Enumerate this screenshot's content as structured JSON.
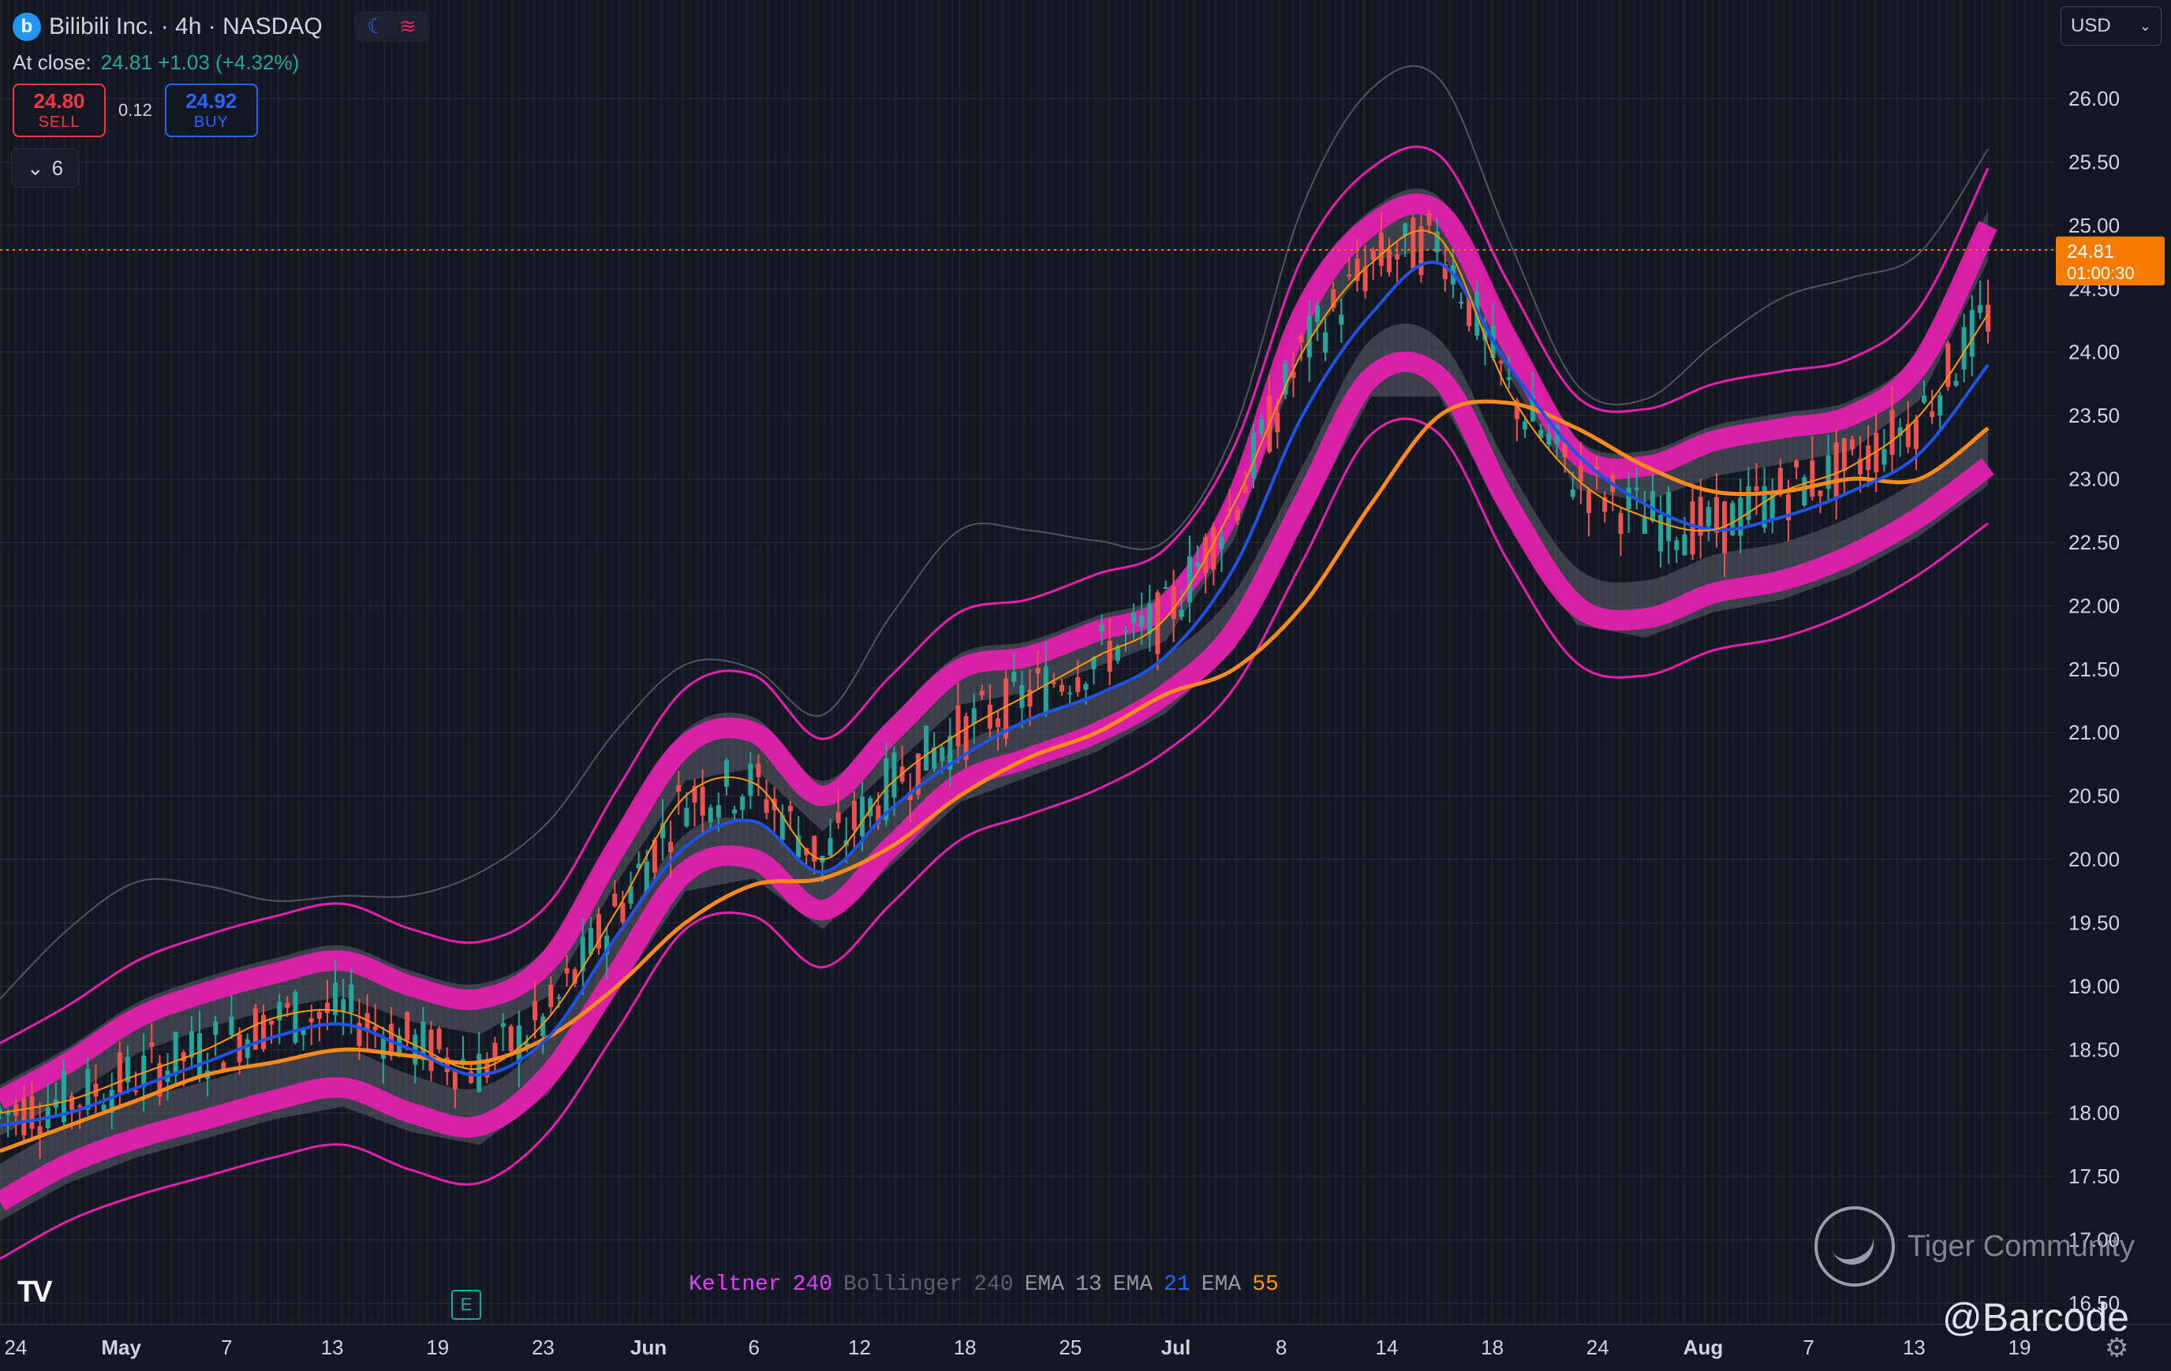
{
  "header": {
    "title": "Bilibili Inc. · 4h · NASDAQ",
    "logo_letter": "b",
    "close_label": "At close:",
    "close_value": "24.81 +1.03 (+4.32%)"
  },
  "trade": {
    "sell_price": "24.80",
    "sell_label": "SELL",
    "buy_price": "24.92",
    "buy_label": "BUY",
    "spread": "0.12"
  },
  "indicator_toggle": {
    "count": "6"
  },
  "currency": "USD",
  "price_axis": {
    "ticks": [
      "26.00",
      "25.50",
      "25.00",
      "24.50",
      "24.00",
      "23.50",
      "23.00",
      "22.50",
      "22.00",
      "21.50",
      "21.00",
      "20.50",
      "20.00",
      "19.50",
      "19.00",
      "18.50",
      "18.00",
      "17.50",
      "17.00",
      "16.50"
    ],
    "last_price": "24.81",
    "countdown": "01:00:30"
  },
  "time_axis": {
    "ticks": [
      "24",
      "May",
      "7",
      "13",
      "19",
      "23",
      "Jun",
      "6",
      "12",
      "18",
      "25",
      "Jul",
      "8",
      "14",
      "18",
      "24",
      "Aug",
      "7",
      "13",
      "19"
    ]
  },
  "legend": [
    {
      "name": "Keltner",
      "value": "240",
      "name_color": "#e040fb",
      "value_color": "#e040fb"
    },
    {
      "name": "Bollinger",
      "value": "240",
      "name_color": "#5d606b",
      "value_color": "#5d606b"
    },
    {
      "name": "EMA",
      "value": "13",
      "name_color": "#9598a1",
      "value_color": "#9598a1"
    },
    {
      "name": "EMA",
      "value": "21",
      "name_color": "#9598a1",
      "value_color": "#2962ff"
    },
    {
      "name": "EMA",
      "value": "55",
      "name_color": "#9598a1",
      "value_color": "#ff9800"
    }
  ],
  "earnings_marker": "E",
  "watermark": "Tiger Community",
  "handle": "@Barcode",
  "colors": {
    "up": "#26a69a",
    "down": "#ef5350",
    "keltner": "#e91eb0",
    "bollinger": "#787b86",
    "ema13": "#ff9800",
    "ema21": "#1e53e5",
    "ema55": "#ff8a1c",
    "last": "#f57c00"
  },
  "chart_data": {
    "type": "candlestick",
    "y_range": [
      16.5,
      26.0
    ],
    "ema55": [
      17.7,
      17.9,
      18.1,
      18.3,
      18.4,
      18.5,
      18.45,
      18.4,
      18.6,
      19.0,
      19.5,
      19.8,
      19.85,
      20.1,
      20.5,
      20.8,
      21.0,
      21.3,
      21.5,
      22.0,
      22.8,
      23.5,
      23.6,
      23.4,
      23.1,
      22.9,
      22.9,
      23.0,
      23.0,
      23.4
    ],
    "ema21": [
      17.9,
      18.0,
      18.2,
      18.4,
      18.6,
      18.7,
      18.5,
      18.3,
      18.6,
      19.4,
      20.1,
      20.3,
      19.9,
      20.4,
      20.8,
      21.1,
      21.3,
      21.6,
      22.3,
      23.5,
      24.3,
      24.7,
      23.9,
      23.2,
      22.8,
      22.6,
      22.7,
      22.9,
      23.2,
      23.9
    ],
    "ema13": [
      18.0,
      18.1,
      18.3,
      18.5,
      18.75,
      18.8,
      18.55,
      18.35,
      18.75,
      19.6,
      20.5,
      20.6,
      20.0,
      20.6,
      21.0,
      21.3,
      21.6,
      21.9,
      22.8,
      24.0,
      24.7,
      24.9,
      23.7,
      23.0,
      22.7,
      22.6,
      22.9,
      23.1,
      23.5,
      24.3
    ],
    "keltner_upper": [
      18.1,
      18.4,
      18.75,
      18.95,
      19.1,
      19.2,
      19.0,
      18.9,
      19.2,
      20.1,
      20.9,
      21.0,
      20.5,
      21.0,
      21.5,
      21.6,
      21.8,
      22.0,
      22.8,
      24.3,
      25.0,
      25.1,
      24.1,
      23.2,
      23.1,
      23.3,
      23.4,
      23.5,
      23.9,
      25.0
    ],
    "keltner_lower": [
      17.3,
      17.6,
      17.8,
      17.95,
      18.1,
      18.2,
      18.0,
      17.9,
      18.3,
      19.1,
      19.9,
      20.0,
      19.6,
      20.1,
      20.6,
      20.8,
      21.0,
      21.3,
      21.8,
      22.8,
      23.8,
      23.8,
      22.8,
      22.0,
      21.9,
      22.1,
      22.2,
      22.4,
      22.7,
      23.1
    ]
  }
}
